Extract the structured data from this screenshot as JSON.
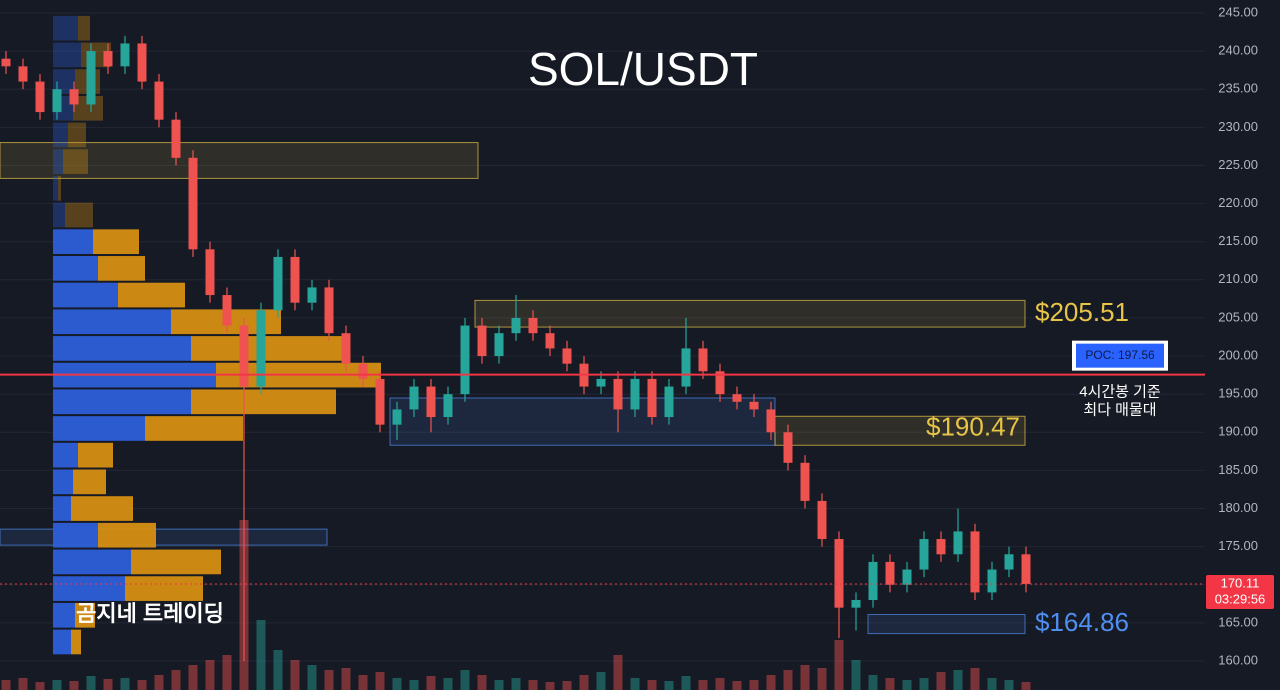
{
  "chart_data": {
    "type": "candlestick",
    "title": "SOL/USDT",
    "ylim": [
      156.2,
      246.7
    ],
    "yticks": [
      {
        "value": 245,
        "label": "245.00"
      },
      {
        "value": 240,
        "label": "240.00"
      },
      {
        "value": 235,
        "label": "235.00"
      },
      {
        "value": 230,
        "label": "230.00"
      },
      {
        "value": 225,
        "label": "225.00"
      },
      {
        "value": 220,
        "label": "220.00"
      },
      {
        "value": 215,
        "label": "215.00"
      },
      {
        "value": 210,
        "label": "210.00"
      },
      {
        "value": 205,
        "label": "205.00"
      },
      {
        "value": 200,
        "label": "200.00"
      },
      {
        "value": 195,
        "label": "195.00"
      },
      {
        "value": 190,
        "label": "190.00"
      },
      {
        "value": 185,
        "label": "185.00"
      },
      {
        "value": 180,
        "label": "180.00"
      },
      {
        "value": 175,
        "label": "175.00"
      },
      {
        "value": 170,
        "label": "170.00"
      },
      {
        "value": 165,
        "label": "165.00"
      },
      {
        "value": 160,
        "label": "160.00"
      }
    ],
    "grid": true,
    "colors": {
      "up": "#26a69a",
      "down": "#ef5350",
      "buy": "#2d5fd8",
      "sell": "#d58e12"
    },
    "candles": {
      "open": [
        239,
        238,
        236,
        232,
        235,
        233,
        240,
        238,
        241,
        236,
        231,
        226,
        214,
        208,
        204,
        196,
        206,
        213,
        207,
        209,
        203,
        199,
        197,
        191,
        193,
        196,
        192,
        195,
        204,
        200,
        203,
        205,
        203,
        201,
        199,
        196,
        197,
        193,
        197,
        192,
        196,
        201,
        198,
        195,
        194,
        193,
        190,
        186,
        181,
        176,
        167,
        168,
        173,
        170,
        172,
        176,
        174,
        177,
        169,
        172,
        174
      ],
      "high": [
        240,
        239,
        237,
        236,
        236,
        241,
        241,
        242,
        242,
        237,
        232,
        227,
        215,
        209,
        205,
        207,
        214,
        214,
        210,
        210,
        204,
        200,
        198,
        194,
        197,
        197,
        196,
        205,
        205,
        204,
        208,
        206,
        204,
        202,
        200,
        198,
        198,
        198,
        198,
        197,
        205,
        202,
        199,
        196,
        195,
        194,
        191,
        187,
        182,
        177,
        169,
        174,
        174,
        173,
        177,
        177,
        180,
        178,
        173,
        175,
        175
      ],
      "low": [
        237,
        235,
        231,
        231,
        232,
        232,
        237,
        237,
        235,
        230,
        225,
        213,
        207,
        203,
        160,
        195,
        205,
        206,
        206,
        202,
        198,
        196,
        190,
        189,
        192,
        190,
        191,
        194,
        199,
        199,
        202,
        202,
        200,
        198,
        195,
        195,
        190,
        192,
        191,
        191,
        195,
        197,
        194,
        193,
        192,
        189,
        185,
        180,
        175,
        163,
        164,
        167,
        169,
        169,
        171,
        173,
        173,
        168,
        168,
        171,
        169
      ],
      "close": [
        238,
        236,
        232,
        235,
        233,
        240,
        238,
        241,
        236,
        231,
        226,
        214,
        208,
        204,
        196,
        206,
        213,
        207,
        209,
        203,
        199,
        197,
        191,
        193,
        196,
        192,
        195,
        204,
        200,
        203,
        205,
        203,
        201,
        199,
        196,
        197,
        193,
        197,
        192,
        196,
        201,
        198,
        195,
        194,
        193,
        190,
        186,
        181,
        176,
        167,
        168,
        173,
        170,
        172,
        176,
        174,
        177,
        169,
        172,
        174,
        170.11
      ],
      "volume": [
        10,
        12,
        8,
        10,
        9,
        14,
        11,
        12,
        10,
        15,
        20,
        25,
        30,
        35,
        170,
        70,
        40,
        30,
        25,
        20,
        22,
        15,
        18,
        12,
        10,
        14,
        12,
        20,
        15,
        10,
        12,
        10,
        8,
        9,
        15,
        18,
        35,
        12,
        10,
        9,
        14,
        10,
        12,
        9,
        10,
        15,
        20,
        25,
        22,
        50,
        30,
        15,
        12,
        10,
        12,
        18,
        20,
        22,
        12,
        10,
        8
      ]
    },
    "volume_profile": {
      "prices": [
        243,
        239.5,
        236,
        232.5,
        229,
        225.5,
        222,
        218.5,
        215,
        211.5,
        208,
        204.5,
        201,
        197.5,
        194,
        190.5,
        187,
        183.5,
        180,
        176.5,
        173,
        169.5,
        166,
        162.5
      ],
      "buy": [
        25,
        28,
        22,
        20,
        15,
        10,
        5,
        12,
        40,
        45,
        65,
        118,
        138,
        163,
        138,
        92,
        25,
        20,
        18,
        45,
        78,
        72,
        22,
        18
      ],
      "sell": [
        12,
        30,
        25,
        30,
        18,
        25,
        3,
        28,
        46,
        47,
        67,
        110,
        155,
        165,
        145,
        98,
        35,
        33,
        62,
        58,
        90,
        78,
        20,
        10
      ]
    },
    "zones": [
      {
        "top": 228,
        "bottom": 223.3,
        "color": "#e8c547"
      },
      {
        "top": 207.3,
        "bottom": 203.8,
        "color": "#e8c547",
        "value": 205.51,
        "label": "$205.51"
      },
      {
        "top": 194.5,
        "bottom": 188.3,
        "color": "#4f8ff0"
      },
      {
        "top": 192.1,
        "bottom": 188.3,
        "color": "#e8c547",
        "value": 190.47,
        "label": "$190.47"
      },
      {
        "top": 166.1,
        "bottom": 163.6,
        "color": "#4f8ff0",
        "value": 164.86,
        "label": "$164.86"
      },
      {
        "top": 177.3,
        "bottom": 175.2,
        "color": "#4f8ff0"
      }
    ],
    "poc": {
      "value": 197.56,
      "label": "POC: 197.56",
      "color": "#f23645"
    },
    "poc_note": [
      "4시간봉 기준",
      "최다 매물대"
    ],
    "current_price": {
      "value": 170.11,
      "label": "170.11",
      "countdown": "03:29:56"
    },
    "watermark": "곰지네 트레이딩"
  }
}
